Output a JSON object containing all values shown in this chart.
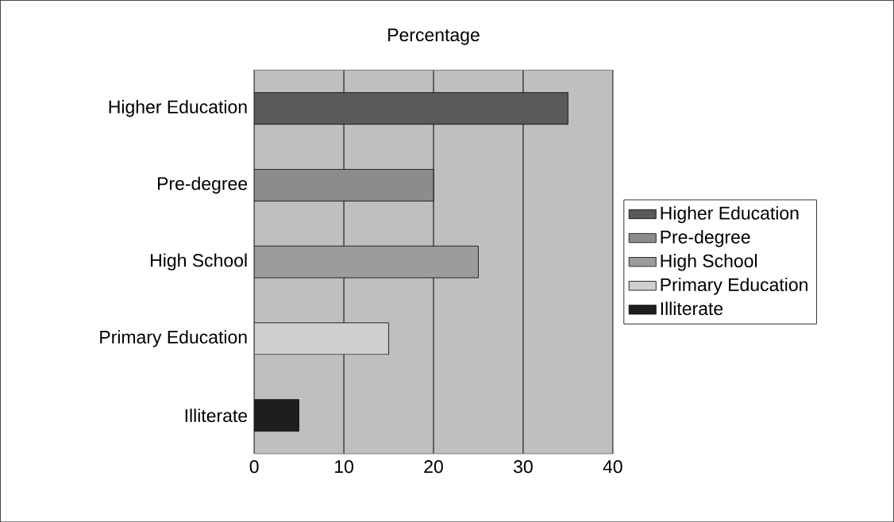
{
  "chart_data": {
    "type": "bar",
    "orientation": "horizontal",
    "title": "Percentage",
    "categories": [
      "Higher Education",
      "Pre-degree",
      "High School",
      "Primary Education",
      "Illiterate"
    ],
    "series": [
      {
        "name": "Higher Education",
        "color": "#5a5a5a",
        "values": [
          35,
          null,
          null,
          null,
          null
        ]
      },
      {
        "name": "Pre-degree",
        "color": "#8c8c8c",
        "values": [
          null,
          20,
          null,
          null,
          null
        ]
      },
      {
        "name": "High School",
        "color": "#9c9c9c",
        "values": [
          null,
          null,
          25,
          null,
          null
        ]
      },
      {
        "name": "Primary Education",
        "color": "#cfcfcf",
        "values": [
          null,
          null,
          null,
          15,
          null
        ]
      },
      {
        "name": "Illiterate",
        "color": "#1e1e1e",
        "values": [
          null,
          null,
          null,
          null,
          5
        ]
      }
    ],
    "xlim": [
      0,
      40
    ],
    "xticks": [
      0,
      10,
      20,
      30,
      40
    ],
    "grid": "x",
    "legend": "right"
  }
}
